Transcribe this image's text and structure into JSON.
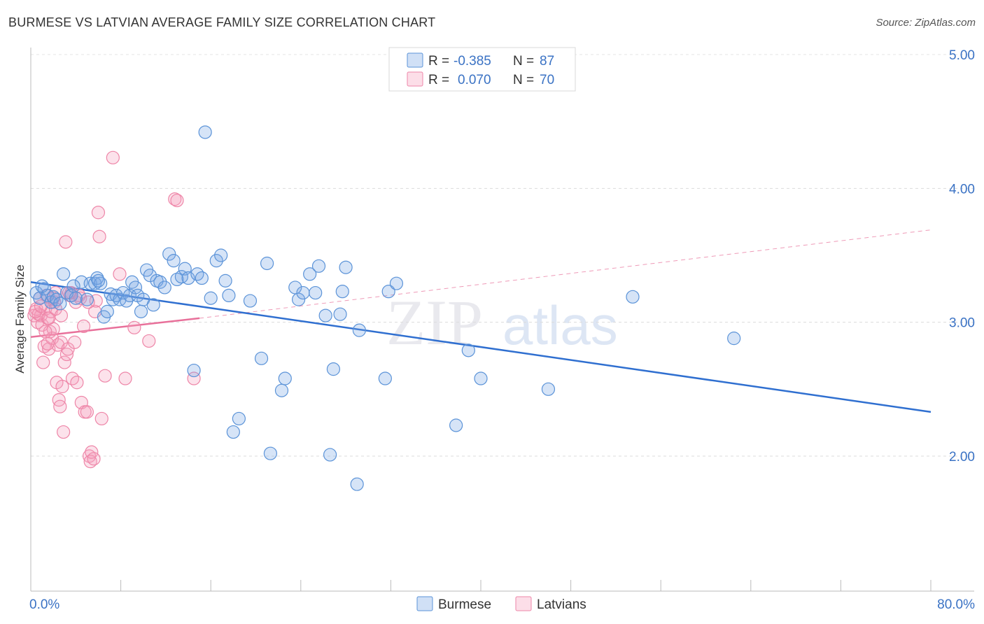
{
  "title": "BURMESE VS LATVIAN AVERAGE FAMILY SIZE CORRELATION CHART",
  "source": "Source: ZipAtlas.com",
  "watermark": {
    "zip": "ZIP",
    "atlas": "atlas"
  },
  "colors": {
    "burmese": "#5b93d8",
    "burmese_fill": "rgba(120,165,230,0.30)",
    "burmese_line": "#2f6fd0",
    "latvian": "#ee86a8",
    "latvian_fill": "rgba(245,160,190,0.30)",
    "latvian_line": "#e8709a"
  },
  "legend": {
    "rows": [
      {
        "r_label": "R =",
        "r_value": "-0.385",
        "n_label": "N =",
        "n_value": "87"
      },
      {
        "r_label": "R =",
        "r_value": "0.070",
        "n_label": "N =",
        "n_value": "70"
      }
    ]
  },
  "chart_data": {
    "type": "scatter",
    "ylabel": "Average Family Size",
    "xlabel": "",
    "x_tick_labels": [
      "0.0%",
      "80.0%"
    ],
    "y_tick_labels": [
      "2.00",
      "3.00",
      "4.00",
      "5.00"
    ],
    "xlim": [
      0,
      80
    ],
    "ylim": [
      1.0,
      5.1
    ],
    "series": [
      {
        "name": "Burmese",
        "trend": {
          "x0": 0,
          "y0": 3.3,
          "x1": 80,
          "y1": 2.33
        },
        "points": [
          [
            0.5,
            3.22
          ],
          [
            0.8,
            3.18
          ],
          [
            1.2,
            3.25
          ],
          [
            1.5,
            3.2
          ],
          [
            1.8,
            3.15
          ],
          [
            2.0,
            3.19
          ],
          [
            2.3,
            3.17
          ],
          [
            2.6,
            3.14
          ],
          [
            2.9,
            3.36
          ],
          [
            3.2,
            3.22
          ],
          [
            3.6,
            3.2
          ],
          [
            4.0,
            3.18
          ],
          [
            4.5,
            3.3
          ],
          [
            5.0,
            3.17
          ],
          [
            5.3,
            3.29
          ],
          [
            5.7,
            3.29
          ],
          [
            5.9,
            3.33
          ],
          [
            6.2,
            3.29
          ],
          [
            6.5,
            3.04
          ],
          [
            6.8,
            3.08
          ],
          [
            7.1,
            3.21
          ],
          [
            7.3,
            3.17
          ],
          [
            7.6,
            3.2
          ],
          [
            7.9,
            3.17
          ],
          [
            8.2,
            3.22
          ],
          [
            8.5,
            3.16
          ],
          [
            8.8,
            3.2
          ],
          [
            9.0,
            3.3
          ],
          [
            9.3,
            3.26
          ],
          [
            9.5,
            3.2
          ],
          [
            9.8,
            3.08
          ],
          [
            10.0,
            3.17
          ],
          [
            10.3,
            3.39
          ],
          [
            10.6,
            3.35
          ],
          [
            10.9,
            3.13
          ],
          [
            11.2,
            3.31
          ],
          [
            11.5,
            3.3
          ],
          [
            11.9,
            3.26
          ],
          [
            12.3,
            3.51
          ],
          [
            12.7,
            3.46
          ],
          [
            13.0,
            3.32
          ],
          [
            13.4,
            3.34
          ],
          [
            13.7,
            3.4
          ],
          [
            14.0,
            3.33
          ],
          [
            14.5,
            2.64
          ],
          [
            14.8,
            3.36
          ],
          [
            15.2,
            3.33
          ],
          [
            15.5,
            4.42
          ],
          [
            16.0,
            3.18
          ],
          [
            16.5,
            3.46
          ],
          [
            16.9,
            3.5
          ],
          [
            17.3,
            3.31
          ],
          [
            17.6,
            3.2
          ],
          [
            18.0,
            2.18
          ],
          [
            18.5,
            2.28
          ],
          [
            19.5,
            3.16
          ],
          [
            20.5,
            2.73
          ],
          [
            21.0,
            3.44
          ],
          [
            21.3,
            2.02
          ],
          [
            22.3,
            2.49
          ],
          [
            22.6,
            2.58
          ],
          [
            23.5,
            3.26
          ],
          [
            23.8,
            3.17
          ],
          [
            24.2,
            3.22
          ],
          [
            24.8,
            3.36
          ],
          [
            25.3,
            3.22
          ],
          [
            25.6,
            3.42
          ],
          [
            26.2,
            3.05
          ],
          [
            26.6,
            2.01
          ],
          [
            26.9,
            2.65
          ],
          [
            27.5,
            3.06
          ],
          [
            27.7,
            3.23
          ],
          [
            28.0,
            3.41
          ],
          [
            29.0,
            1.79
          ],
          [
            29.2,
            2.94
          ],
          [
            31.5,
            2.58
          ],
          [
            31.8,
            3.23
          ],
          [
            32.5,
            3.29
          ],
          [
            37.8,
            2.23
          ],
          [
            38.9,
            2.79
          ],
          [
            40.0,
            2.58
          ],
          [
            46.0,
            2.5
          ],
          [
            53.5,
            3.19
          ],
          [
            62.5,
            2.88
          ],
          [
            1.0,
            3.27
          ],
          [
            3.8,
            3.27
          ],
          [
            6.0,
            3.31
          ]
        ]
      },
      {
        "name": "Latvians",
        "trend": {
          "x0": 0,
          "y0": 2.89,
          "x1": 15,
          "y1": 3.03
        },
        "trend_ext": {
          "x0": 15,
          "y0": 3.03,
          "x1": 80,
          "y1": 3.69
        },
        "points": [
          [
            0.3,
            3.05
          ],
          [
            0.5,
            3.1
          ],
          [
            0.6,
            3.0
          ],
          [
            0.8,
            3.18
          ],
          [
            0.9,
            3.05
          ],
          [
            1.0,
            2.98
          ],
          [
            1.1,
            2.7
          ],
          [
            1.2,
            2.82
          ],
          [
            1.3,
            3.1
          ],
          [
            1.4,
            3.2
          ],
          [
            1.5,
            3.03
          ],
          [
            1.6,
            2.8
          ],
          [
            1.7,
            2.93
          ],
          [
            1.8,
            3.08
          ],
          [
            1.9,
            2.88
          ],
          [
            2.0,
            2.95
          ],
          [
            2.1,
            3.15
          ],
          [
            2.2,
            3.22
          ],
          [
            2.3,
            2.55
          ],
          [
            2.4,
            2.83
          ],
          [
            2.5,
            2.42
          ],
          [
            2.6,
            2.37
          ],
          [
            2.7,
            2.85
          ],
          [
            2.8,
            2.52
          ],
          [
            2.9,
            2.18
          ],
          [
            3.0,
            2.7
          ],
          [
            3.1,
            3.6
          ],
          [
            3.2,
            2.76
          ],
          [
            3.3,
            2.8
          ],
          [
            3.5,
            3.2
          ],
          [
            3.6,
            3.22
          ],
          [
            3.7,
            2.58
          ],
          [
            3.9,
            2.85
          ],
          [
            4.0,
            3.15
          ],
          [
            4.1,
            2.55
          ],
          [
            4.3,
            3.2
          ],
          [
            4.5,
            2.4
          ],
          [
            4.7,
            2.97
          ],
          [
            4.8,
            2.33
          ],
          [
            5.0,
            2.33
          ],
          [
            5.2,
            2.0
          ],
          [
            5.3,
            1.96
          ],
          [
            5.4,
            2.03
          ],
          [
            5.6,
            1.98
          ],
          [
            5.7,
            3.08
          ],
          [
            5.8,
            3.16
          ],
          [
            6.0,
            3.82
          ],
          [
            6.1,
            3.64
          ],
          [
            6.3,
            2.28
          ],
          [
            6.6,
            2.6
          ],
          [
            7.3,
            4.23
          ],
          [
            7.9,
            3.36
          ],
          [
            8.4,
            2.58
          ],
          [
            9.2,
            2.96
          ],
          [
            10.5,
            2.86
          ],
          [
            12.8,
            3.92
          ],
          [
            13.0,
            3.91
          ],
          [
            14.5,
            2.58
          ],
          [
            0.7,
            3.06
          ],
          [
            1.5,
            2.84
          ],
          [
            2.0,
            3.18
          ],
          [
            0.4,
            3.08
          ],
          [
            0.9,
            3.12
          ],
          [
            1.3,
            2.93
          ],
          [
            1.6,
            3.03
          ],
          [
            2.2,
            3.1
          ],
          [
            4.4,
            3.18
          ],
          [
            5.1,
            3.15
          ],
          [
            3.4,
            3.22
          ],
          [
            2.7,
            3.05
          ]
        ]
      }
    ]
  }
}
